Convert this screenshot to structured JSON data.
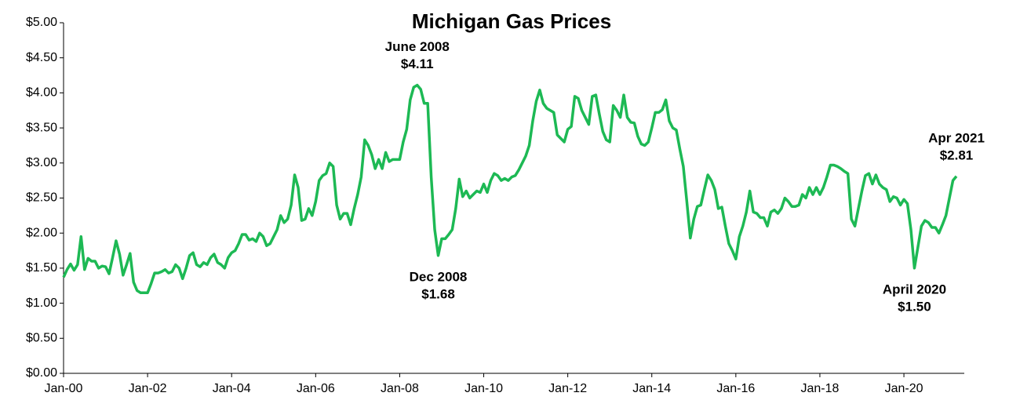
{
  "chart_data": {
    "type": "line",
    "title": "Michigan Gas Prices",
    "categories": [
      "Jan-00",
      null,
      null,
      null,
      null,
      null,
      null,
      null,
      null,
      null,
      null,
      null,
      null,
      null,
      null,
      null,
      null,
      null,
      null,
      null,
      null,
      null,
      null,
      null,
      "Jan-02",
      null,
      null,
      null,
      null,
      null,
      null,
      null,
      null,
      null,
      null,
      null,
      null,
      null,
      null,
      null,
      null,
      null,
      null,
      null,
      null,
      null,
      null,
      null,
      "Jan-04",
      null,
      null,
      null,
      null,
      null,
      null,
      null,
      null,
      null,
      null,
      null,
      null,
      null,
      null,
      null,
      null,
      null,
      null,
      null,
      null,
      null,
      null,
      null,
      "Jan-06",
      null,
      null,
      null,
      null,
      null,
      null,
      null,
      null,
      null,
      null,
      null,
      null,
      null,
      null,
      null,
      null,
      null,
      null,
      null,
      null,
      null,
      null,
      null,
      "Jan-08",
      null,
      null,
      null,
      null,
      null,
      null,
      null,
      null,
      null,
      null,
      null,
      null,
      null,
      null,
      null,
      null,
      null,
      null,
      null,
      null,
      null,
      null,
      null,
      "Jan-10",
      null,
      null,
      null,
      null,
      null,
      null,
      null,
      null,
      null,
      null,
      null,
      null,
      null,
      null,
      null,
      null,
      null,
      null,
      null,
      null,
      null,
      null,
      null,
      "Jan-12",
      null,
      null,
      null,
      null,
      null,
      null,
      null,
      null,
      null,
      null,
      null,
      null,
      null,
      null,
      null,
      null,
      null,
      null,
      null,
      null,
      null,
      null,
      null,
      "Jan-14",
      null,
      null,
      null,
      null,
      null,
      null,
      null,
      null,
      null,
      null,
      null,
      null,
      null,
      null,
      null,
      null,
      null,
      null,
      null,
      null,
      null,
      null,
      null,
      "Jan-16",
      null,
      null,
      null,
      null,
      null,
      null,
      null,
      null,
      null,
      null,
      null,
      null,
      null,
      null,
      null,
      null,
      null,
      null,
      null,
      null,
      null,
      null,
      null,
      "Jan-18",
      null,
      null,
      null,
      null,
      null,
      null,
      null,
      null,
      null,
      null,
      null,
      null,
      null,
      null,
      null,
      null,
      null,
      null,
      null,
      null,
      null,
      null,
      null,
      "Jan-20",
      null,
      null,
      null,
      null,
      null,
      null,
      null,
      null,
      null,
      null,
      null,
      null,
      null,
      null,
      null
    ],
    "series": [
      {
        "color": "#1db954",
        "values": [
          1.37,
          1.48,
          1.56,
          1.47,
          1.55,
          1.95,
          1.48,
          1.64,
          1.6,
          1.6,
          1.5,
          1.53,
          1.52,
          1.42,
          1.65,
          1.89,
          1.7,
          1.4,
          1.55,
          1.71,
          1.3,
          1.18,
          1.15,
          1.15,
          1.15,
          1.28,
          1.43,
          1.43,
          1.45,
          1.48,
          1.43,
          1.45,
          1.55,
          1.5,
          1.35,
          1.5,
          1.68,
          1.72,
          1.55,
          1.52,
          1.58,
          1.55,
          1.65,
          1.7,
          1.58,
          1.55,
          1.5,
          1.65,
          1.72,
          1.75,
          1.85,
          1.98,
          1.98,
          1.9,
          1.92,
          1.88,
          2.0,
          1.95,
          1.82,
          1.85,
          1.95,
          2.05,
          2.25,
          2.15,
          2.2,
          2.4,
          2.83,
          2.65,
          2.18,
          2.2,
          2.35,
          2.25,
          2.45,
          2.75,
          2.82,
          2.85,
          3.0,
          2.95,
          2.4,
          2.2,
          2.28,
          2.28,
          2.12,
          2.35,
          2.55,
          2.8,
          3.33,
          3.25,
          3.12,
          2.92,
          3.05,
          2.92,
          3.15,
          3.02,
          3.05,
          3.05,
          3.05,
          3.3,
          3.48,
          3.9,
          4.08,
          4.11,
          4.05,
          3.85,
          3.85,
          2.8,
          2.05,
          1.68,
          1.92,
          1.92,
          1.98,
          2.05,
          2.35,
          2.77,
          2.52,
          2.6,
          2.5,
          2.55,
          2.6,
          2.58,
          2.7,
          2.58,
          2.75,
          2.85,
          2.82,
          2.75,
          2.78,
          2.75,
          2.8,
          2.82,
          2.9,
          3.0,
          3.1,
          3.25,
          3.6,
          3.88,
          4.04,
          3.85,
          3.78,
          3.75,
          3.72,
          3.4,
          3.35,
          3.3,
          3.48,
          3.52,
          3.95,
          3.92,
          3.75,
          3.65,
          3.55,
          3.95,
          3.97,
          3.7,
          3.45,
          3.33,
          3.3,
          3.82,
          3.75,
          3.65,
          3.97,
          3.65,
          3.58,
          3.57,
          3.38,
          3.27,
          3.25,
          3.3,
          3.5,
          3.72,
          3.72,
          3.76,
          3.9,
          3.6,
          3.5,
          3.47,
          3.2,
          2.95,
          2.45,
          1.93,
          2.2,
          2.38,
          2.4,
          2.62,
          2.83,
          2.75,
          2.62,
          2.35,
          2.37,
          2.1,
          1.85,
          1.75,
          1.63,
          1.95,
          2.1,
          2.3,
          2.6,
          2.3,
          2.28,
          2.22,
          2.22,
          2.1,
          2.3,
          2.33,
          2.28,
          2.35,
          2.5,
          2.45,
          2.38,
          2.38,
          2.4,
          2.55,
          2.5,
          2.65,
          2.55,
          2.65,
          2.55,
          2.65,
          2.8,
          2.97,
          2.97,
          2.95,
          2.92,
          2.88,
          2.85,
          2.2,
          2.1,
          2.35,
          2.6,
          2.82,
          2.85,
          2.7,
          2.83,
          2.7,
          2.65,
          2.62,
          2.45,
          2.52,
          2.5,
          2.4,
          2.48,
          2.42,
          2.05,
          1.5,
          1.8,
          2.1,
          2.18,
          2.15,
          2.08,
          2.08,
          2.0,
          2.12,
          2.25,
          2.5,
          2.75,
          2.81
        ],
        "value_labels": [
          null,
          null,
          null,
          null,
          null,
          null,
          null,
          null,
          null,
          null,
          null,
          null,
          null,
          null,
          null,
          null,
          null,
          null,
          null,
          null,
          null,
          null,
          null,
          null,
          null,
          null,
          null,
          null,
          null,
          null,
          null,
          null,
          null,
          null,
          null,
          null,
          null,
          null,
          null,
          null,
          null,
          null,
          null,
          null,
          null,
          null,
          null,
          null,
          null,
          null,
          null,
          null,
          null,
          null,
          null,
          null,
          null,
          null,
          null,
          null,
          null,
          null,
          null,
          null,
          null,
          null,
          null,
          null,
          null,
          null,
          null,
          null,
          null,
          null,
          null,
          null,
          null,
          null,
          null,
          null,
          null,
          null,
          null,
          null,
          null,
          null,
          null,
          null,
          null,
          null,
          null,
          null,
          null,
          null,
          null,
          null,
          null,
          null,
          null,
          null,
          null,
          "$4.11",
          null,
          null,
          null,
          null,
          null,
          "$1.68",
          null,
          null,
          null,
          null,
          null,
          null,
          null,
          null,
          null,
          null,
          null,
          null,
          null,
          null,
          null,
          null,
          null,
          null,
          null,
          null,
          null,
          null,
          null,
          null,
          null,
          null,
          null,
          null,
          null,
          null,
          null,
          null,
          null,
          null,
          null,
          null,
          null,
          null,
          null,
          null,
          null,
          null,
          null,
          null,
          null,
          null,
          null,
          null,
          null,
          null,
          null,
          null,
          null,
          null,
          null,
          null,
          null,
          null,
          null,
          null,
          null,
          null,
          null,
          null,
          null,
          null,
          null,
          null,
          null,
          null,
          null,
          null,
          null,
          null,
          null,
          null,
          null,
          null,
          null,
          null,
          null,
          null,
          null,
          null,
          null,
          null,
          null,
          null,
          null,
          null,
          null,
          null,
          null,
          null,
          null,
          null,
          null,
          null,
          null,
          null,
          null,
          null,
          null,
          null,
          null,
          null,
          null,
          null,
          null,
          null,
          null,
          null,
          null,
          null,
          null,
          null,
          null,
          null,
          null,
          null,
          null,
          null,
          null,
          null,
          null,
          null,
          null,
          null,
          null,
          null,
          null,
          null,
          null,
          null,
          null,
          "$1.50",
          null,
          null,
          null,
          null,
          null,
          null,
          null,
          null,
          null,
          null,
          null,
          "$2.81"
        ]
      }
    ],
    "annotations": [
      "June 2008",
      "Dec 2008",
      "April 2020",
      "Apr 2021"
    ],
    "ylim": [
      0,
      5
    ],
    "yticks": [
      {
        "value": 0,
        "label": "$0.00"
      },
      {
        "value": 0.5,
        "label": "$0.50"
      },
      {
        "value": 1,
        "label": "$1.00"
      },
      {
        "value": 1.5,
        "label": "$1.50"
      },
      {
        "value": 2,
        "label": "$2.00"
      },
      {
        "value": 2.5,
        "label": "$2.50"
      },
      {
        "value": 3,
        "label": "$3.00"
      },
      {
        "value": 3.5,
        "label": "$3.50"
      },
      {
        "value": 4,
        "label": "$4.00"
      },
      {
        "value": 4.5,
        "label": "$4.50"
      },
      {
        "value": 5,
        "label": "$5.00"
      }
    ],
    "grid": false
  }
}
